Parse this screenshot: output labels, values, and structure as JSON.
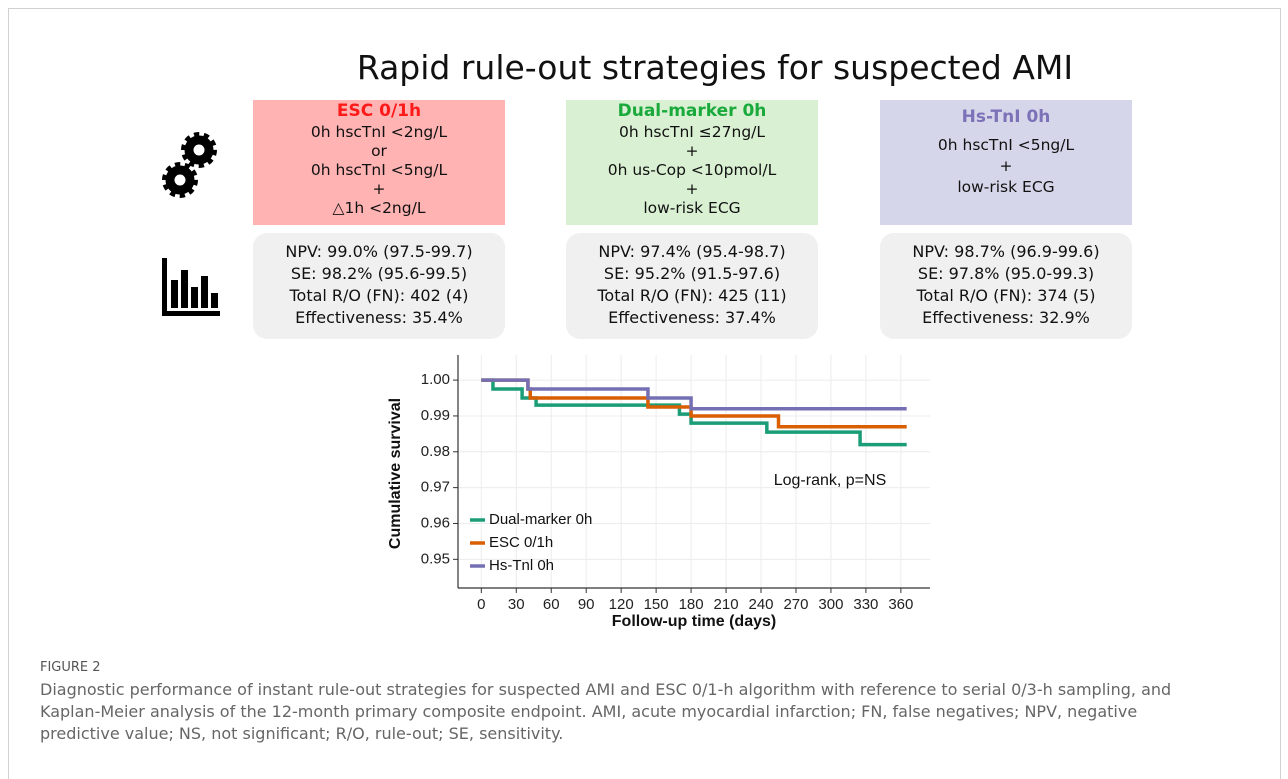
{
  "title": "Rapid rule-out strategies for suspected AMI",
  "panels": [
    {
      "header": "ESC 0/1h",
      "header_color": "#ff1a1a",
      "box_color": "#ffb3b3",
      "lines": [
        "0h hscTnI <2ng/L",
        "or",
        "0h hscTnI <5ng/L",
        "+",
        "△1h <2ng/L"
      ],
      "stats": [
        "NPV: 99.0% (97.5-99.7)",
        "SE: 98.2% (95.6-99.5)",
        "Total R/O (FN): 402 (4)",
        "Effectiveness: 35.4%"
      ]
    },
    {
      "header": "Dual-marker 0h",
      "header_color": "#1aaa3c",
      "box_color": "#d9f0d3",
      "lines": [
        "0h hscTnI ≤27ng/L",
        "+",
        "0h us-Cop <10pmol/L",
        "+",
        "low-risk ECG"
      ],
      "stats": [
        "NPV: 97.4% (95.4-98.7)",
        "SE: 95.2% (91.5-97.6)",
        "Total R/O (FN): 425 (11)",
        "Effectiveness: 37.4%"
      ]
    },
    {
      "header": "Hs-TnI 0h",
      "header_color": "#7b72b8",
      "box_color": "#d6d6ea",
      "lines": [
        "0h hscTnI <5ng/L",
        "+",
        "low-risk ECG"
      ],
      "stats": [
        "NPV: 98.7% (96.9-99.6)",
        "SE: 97.8% (95.0-99.3)",
        "Total R/O (FN): 374 (5)",
        "Effectiveness: 32.9%"
      ]
    }
  ],
  "chart_data": {
    "type": "line",
    "step": true,
    "x_label": "Follow-up time (days)",
    "y_label": "Cumulative survival",
    "annotation": "Log-rank, p=NS",
    "xlim": [
      -20,
      385
    ],
    "ylim": [
      0.942,
      1.007
    ],
    "xticks": [
      0,
      30,
      60,
      90,
      120,
      150,
      180,
      210,
      240,
      270,
      300,
      330,
      360
    ],
    "yticks": [
      0.95,
      0.96,
      0.97,
      0.98,
      0.99,
      {
        "value": 1,
        "label": "1.00"
      }
    ],
    "grid": true,
    "legend": "lower left",
    "series": [
      {
        "name": "Dual-marker 0h",
        "color": "#1b9e77",
        "x": [
          0,
          10,
          35,
          47,
          170,
          180,
          245,
          325,
          365
        ],
        "values": [
          1.0,
          0.9975,
          0.995,
          0.993,
          0.9905,
          0.988,
          0.9855,
          0.982,
          0.982
        ]
      },
      {
        "name": "ESC 0/1h",
        "color": "#d95f02",
        "x": [
          0,
          40,
          42,
          143,
          180,
          255,
          365
        ],
        "values": [
          1.0,
          0.9975,
          0.995,
          0.9925,
          0.99,
          0.987,
          0.987
        ]
      },
      {
        "name": "Hs-Tnl 0h",
        "color": "#7570b3",
        "x": [
          0,
          40,
          143,
          180,
          365
        ],
        "values": [
          1.0,
          0.9975,
          0.995,
          0.992,
          0.992
        ]
      }
    ]
  },
  "caption": {
    "label": "FIGURE 2",
    "lines": [
      "Diagnostic performance of instant rule-out strategies for suspected AMI and ESC 0/1-h algorithm with reference to serial 0/3-h sampling, and",
      "Kaplan-Meier analysis of the 12-month primary composite endpoint. AMI, acute myocardial infarction; FN, false negatives; NPV, negative",
      "predictive value; NS, not significant; R/O, rule-out; SE, sensitivity."
    ]
  }
}
